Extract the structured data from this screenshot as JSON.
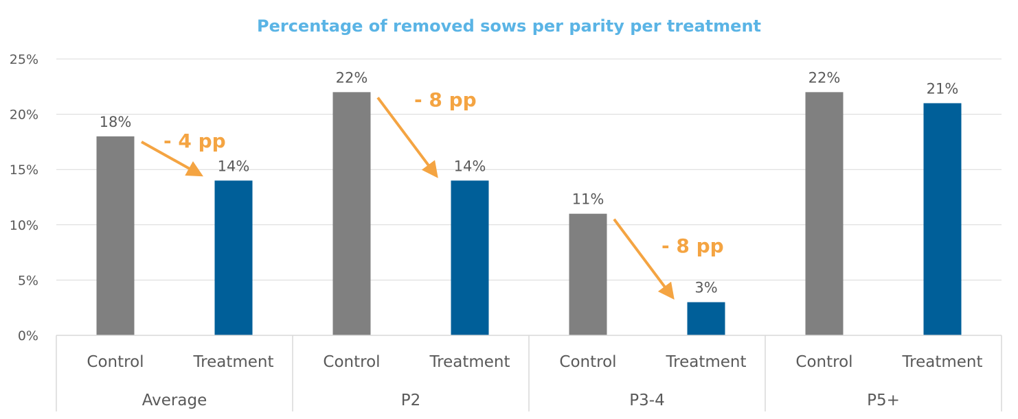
{
  "chart_data": {
    "type": "bar",
    "title": "Percentage of removed sows per parity per treatment",
    "xlabel": "",
    "ylabel": "",
    "ylim": [
      0,
      25
    ],
    "yticks": [
      "0%",
      "5%",
      "10%",
      "15%",
      "20%",
      "25%"
    ],
    "ytick_values": [
      0,
      5,
      10,
      15,
      20,
      25
    ],
    "grid": true,
    "groups": [
      {
        "label": "Average",
        "bars": [
          {
            "label": "Control",
            "value": 18,
            "data_label": "18%"
          },
          {
            "label": "Treatment",
            "value": 14,
            "data_label": "14%"
          }
        ]
      },
      {
        "label": "P2",
        "bars": [
          {
            "label": "Control",
            "value": 22,
            "data_label": "22%"
          },
          {
            "label": "Treatment",
            "value": 14,
            "data_label": "14%"
          }
        ]
      },
      {
        "label": "P3-4",
        "bars": [
          {
            "label": "Control",
            "value": 11,
            "data_label": "11%"
          },
          {
            "label": "Treatment",
            "value": 3,
            "data_label": "3%"
          }
        ]
      },
      {
        "label": "P5+",
        "bars": [
          {
            "label": "Control",
            "value": 22,
            "data_label": "22%"
          },
          {
            "label": "Treatment",
            "value": 21,
            "data_label": "21%"
          }
        ]
      }
    ],
    "annotations": [
      {
        "group": 0,
        "text": "- 4 pp"
      },
      {
        "group": 1,
        "text": "- 8 pp"
      },
      {
        "group": 2,
        "text": "- 8 pp"
      }
    ],
    "colors": {
      "Control": "#808080",
      "Treatment": "#005f99",
      "annotation": "#f4a442",
      "title": "#5ab4e5",
      "grid": "#d9d9d9"
    }
  }
}
